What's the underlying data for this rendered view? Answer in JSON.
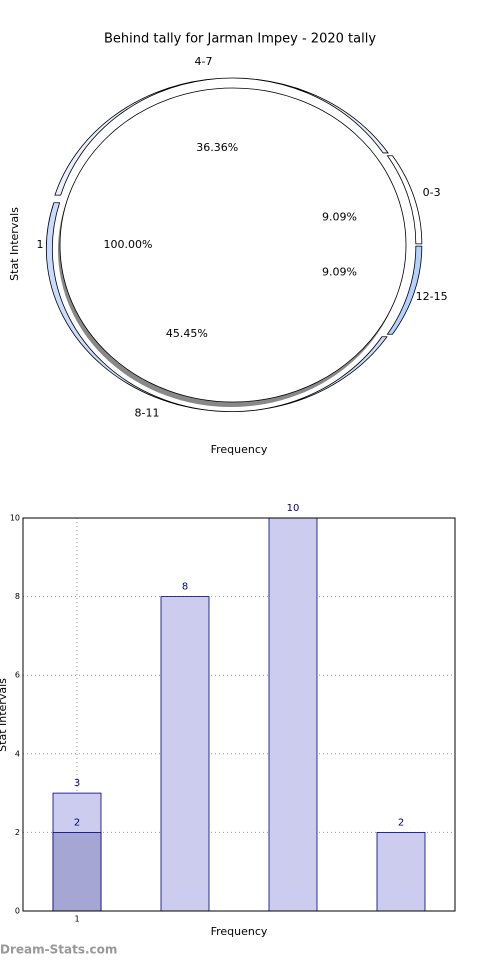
{
  "chart_data": [
    {
      "type": "pie",
      "title": "Behind tally for Jarman Impey - 2020 tally",
      "xlabel": "Frequency",
      "ylabel": "Stat Intervals",
      "categories": [
        "0-3",
        "4-7",
        "8-11",
        "12-15"
      ],
      "values": [
        9.09,
        36.36,
        45.45,
        9.09
      ],
      "value_labels": [
        "9.09%",
        "36.36%",
        "45.45%",
        "9.09%"
      ],
      "colors": [
        "#ffffff",
        "#e8efff",
        "#c9dbff",
        "#b3d1ff"
      ],
      "inner": {
        "categories": [
          "1"
        ],
        "values": [
          100
        ],
        "value_labels": [
          "100.00%"
        ],
        "colors": [
          "#ffffff"
        ]
      }
    },
    {
      "type": "bar",
      "xlabel": "Frequency",
      "ylabel": "Stat Intervals",
      "categories": [
        "1",
        null,
        null,
        null
      ],
      "series": [
        {
          "color": "#ccccee",
          "values": [
            3,
            8,
            10,
            2
          ]
        },
        {
          "color": "#a6a6d4",
          "values": [
            2,
            null,
            null,
            null
          ]
        }
      ],
      "ylim": [
        0,
        10
      ],
      "yticks": [
        0,
        2,
        4,
        6,
        8,
        10
      ],
      "grid": true
    }
  ],
  "watermark": "Dream-Stats.com"
}
